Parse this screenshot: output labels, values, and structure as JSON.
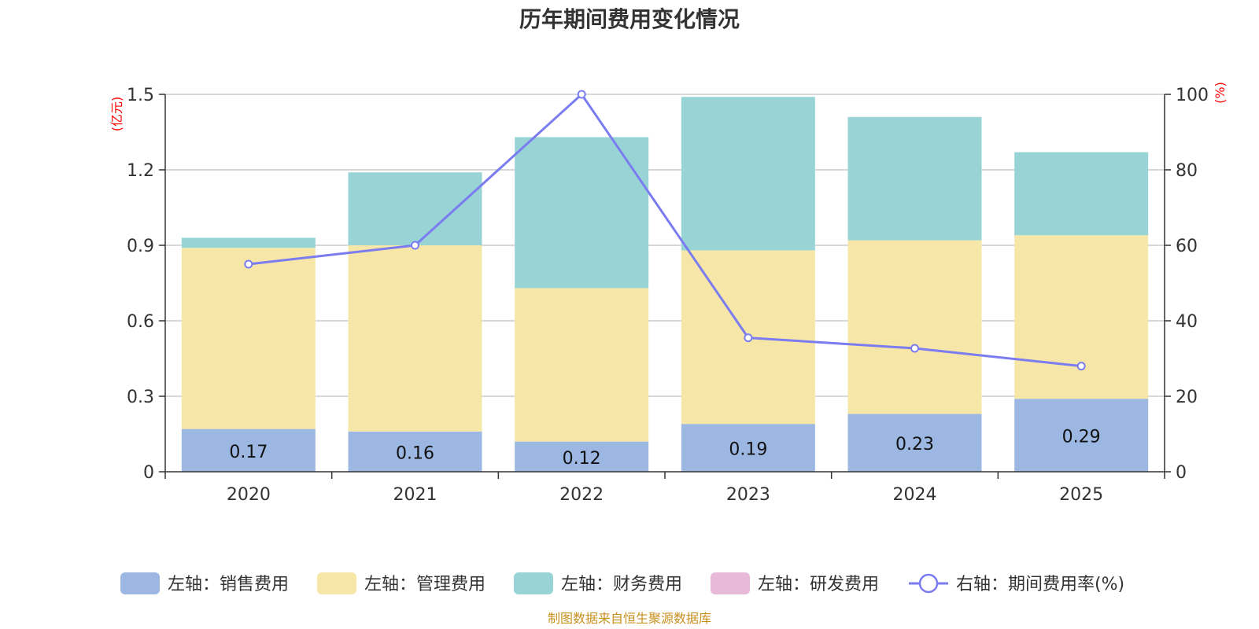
{
  "chart_data": {
    "type": "bar",
    "stacked": true,
    "title": "历年期间费用变化情况",
    "categories": [
      "2020",
      "2021",
      "2022",
      "2023",
      "2024",
      "2025"
    ],
    "y_left": {
      "unit": "(亿元)",
      "ylim": [
        0,
        1.5
      ],
      "ticks": [
        0,
        0.3,
        0.6,
        0.9,
        1.2,
        1.5
      ],
      "tick_labels": [
        "0",
        "0.3",
        "0.6",
        "0.9",
        "1.2",
        "1.5"
      ]
    },
    "y_right": {
      "unit": "(%)",
      "ylim": [
        0,
        100
      ],
      "ticks": [
        0,
        20,
        40,
        60,
        80,
        100
      ],
      "tick_labels": [
        "0",
        "20",
        "40",
        "60",
        "80",
        "100"
      ]
    },
    "series": [
      {
        "name": "左轴：销售费用",
        "axis": "left",
        "kind": "bar",
        "color": "#9cb8e2",
        "values": [
          0.17,
          0.16,
          0.12,
          0.19,
          0.23,
          0.29
        ],
        "labels": [
          "0.17",
          "0.16",
          "0.12",
          "0.19",
          "0.23",
          "0.29"
        ]
      },
      {
        "name": "左轴：管理费用",
        "axis": "left",
        "kind": "bar",
        "color": "#f6e7a9",
        "values": [
          0.72,
          0.74,
          0.61,
          0.69,
          0.69,
          0.65
        ]
      },
      {
        "name": "左轴：财务费用",
        "axis": "left",
        "kind": "bar",
        "color": "#98d4d5",
        "values": [
          0.04,
          0.29,
          0.6,
          0.61,
          0.49,
          0.33
        ]
      },
      {
        "name": "左轴：研发费用",
        "axis": "left",
        "kind": "bar",
        "color": "#e8b9d9",
        "values": [
          0,
          0,
          0,
          0,
          0,
          0
        ]
      },
      {
        "name": "右轴：期间费用率(%)",
        "axis": "right",
        "kind": "line",
        "color": "#7a7cf0",
        "values": [
          55,
          60,
          100,
          35.5,
          32.7,
          28
        ]
      }
    ],
    "grid": true,
    "legend": "bottom"
  },
  "source": "制图数据来自恒生聚源数据库"
}
